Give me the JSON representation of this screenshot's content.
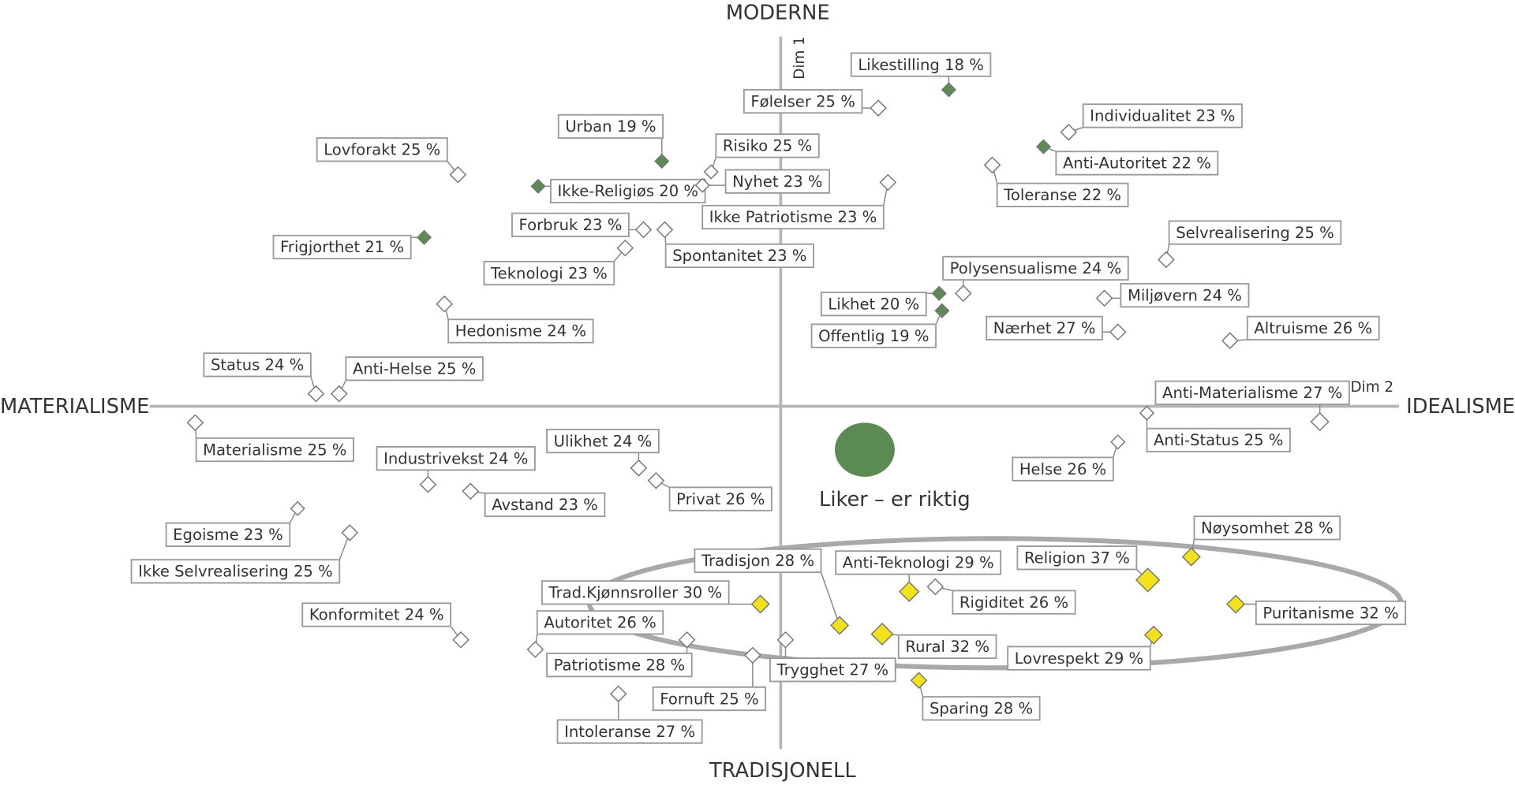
{
  "axes": {
    "top": "MODERNE",
    "bottom": "TRADISJONELL",
    "left": "MATERIALISME",
    "right": "IDEALISME",
    "dim1": "Dim 1",
    "dim2": "Dim 2"
  },
  "legend": {
    "label": "Liker – er riktig",
    "color": "#5b8a52"
  },
  "items": [
    {
      "label": "Likestilling  18 %",
      "marker": "#5b8a52"
    },
    {
      "label": "Følelser 25 %",
      "marker": "#ffffff"
    },
    {
      "label": "Urban 19 %",
      "marker": "#5b8a52"
    },
    {
      "label": "Individualitet  23 %",
      "marker": "#ffffff"
    },
    {
      "label": "Lovforakt 25 %",
      "marker": "#ffffff"
    },
    {
      "label": "Risiko 25 %",
      "marker": "#ffffff"
    },
    {
      "label": "Anti-Autoritet 22 %",
      "marker": "#5b8a52"
    },
    {
      "label": "Ikke-Religiøs 20 %",
      "marker": "#5b8a52"
    },
    {
      "label": "Nyhet 23 %",
      "marker": "#ffffff"
    },
    {
      "label": "Toleranse 22 %",
      "marker": "#ffffff"
    },
    {
      "label": "Ikke Patriotisme 23 %",
      "marker": "#ffffff"
    },
    {
      "label": "Forbruk  23 %",
      "marker": "#ffffff"
    },
    {
      "label": "Spontanitet  23 %",
      "marker": "#ffffff"
    },
    {
      "label": "Frigjorthet  21 %",
      "marker": "#5b8a52"
    },
    {
      "label": "Selvrealisering  25 %",
      "marker": "#ffffff"
    },
    {
      "label": "Teknologi 23 %",
      "marker": "#ffffff"
    },
    {
      "label": "Polysensualisme  24 %",
      "marker": "#ffffff"
    },
    {
      "label": "Likhet 20 %",
      "marker": "#5b8a52"
    },
    {
      "label": "Miljøvern 24 %",
      "marker": "#ffffff"
    },
    {
      "label": "Offentlig  19 %",
      "marker": "#5b8a52"
    },
    {
      "label": "Nærhet 27 %",
      "marker": "#ffffff"
    },
    {
      "label": "Altruisme 26 %",
      "marker": "#ffffff"
    },
    {
      "label": "Hedonisme 24 %",
      "marker": "#ffffff"
    },
    {
      "label": "Status 24 %",
      "marker": "#ffffff"
    },
    {
      "label": "Anti-Helse  25 %",
      "marker": "#ffffff"
    },
    {
      "label": "Anti-Materialisme 27 %",
      "marker": "#ffffff"
    },
    {
      "label": "Anti-Status 25 %",
      "marker": "#ffffff"
    },
    {
      "label": "Materialisme 25 %",
      "marker": "#ffffff"
    },
    {
      "label": "Helse  26 %",
      "marker": "#ffffff"
    },
    {
      "label": "Ulikhet 24 %",
      "marker": "#ffffff"
    },
    {
      "label": "Industrivekst  24 %",
      "marker": "#ffffff"
    },
    {
      "label": "Privat 26 %",
      "marker": "#ffffff"
    },
    {
      "label": "Avstand 23 %",
      "marker": "#ffffff"
    },
    {
      "label": "Egoisme 23 %",
      "marker": "#ffffff"
    },
    {
      "label": "Ikke Selvrealisering  25 %",
      "marker": "#ffffff"
    },
    {
      "label": "Nøysomhet 28 %",
      "marker": "#f2e21a"
    },
    {
      "label": "Tradisjon 28 %",
      "marker": "#f2e21a"
    },
    {
      "label": "Anti-Teknologi 29 %",
      "marker": "#f2e21a"
    },
    {
      "label": "Religion 37 %",
      "marker": "#f2e21a"
    },
    {
      "label": "Trad.Kjønnsroller  30 %",
      "marker": "#f2e21a"
    },
    {
      "label": "Rigiditet 26 %",
      "marker": "#ffffff"
    },
    {
      "label": "Puritanisme 32 %",
      "marker": "#f2e21a"
    },
    {
      "label": "Konformitet 24 %",
      "marker": "#ffffff"
    },
    {
      "label": "Autoritet 26 %",
      "marker": "#ffffff"
    },
    {
      "label": "Rural 32 %",
      "marker": "#f2e21a"
    },
    {
      "label": "Lovrespekt 29 %",
      "marker": "#f2e21a"
    },
    {
      "label": "Patriotisme 28 %",
      "marker": "#ffffff"
    },
    {
      "label": "Trygghet 27 %",
      "marker": "#ffffff"
    },
    {
      "label": "Fornuft 25 %",
      "marker": "#ffffff"
    },
    {
      "label": "Sparing 28 %",
      "marker": "#f2e21a"
    },
    {
      "label": "Intoleranse  27 %",
      "marker": "#ffffff"
    }
  ]
}
